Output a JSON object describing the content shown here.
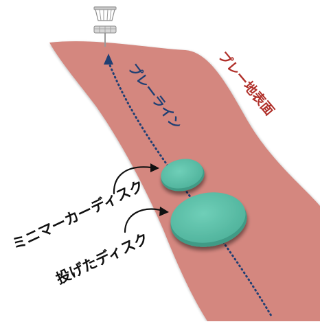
{
  "labels": {
    "play_surface": "プレー地表面",
    "play_line": "プレーライン",
    "mini_marker": "ミニマーカーディスク",
    "thrown_disc": "投げたディスク"
  },
  "colors": {
    "surface": "#d4877f",
    "play_line": "#1f3f73",
    "disc": "#5cc0a8",
    "disc_edge": "#3f9b86",
    "surface_label": "#b0302a",
    "line_label": "#1f3f73",
    "text": "#111111"
  },
  "icons": {
    "basket": "disc-golf-basket-icon",
    "arrow_head": "arrowhead-up-icon"
  }
}
